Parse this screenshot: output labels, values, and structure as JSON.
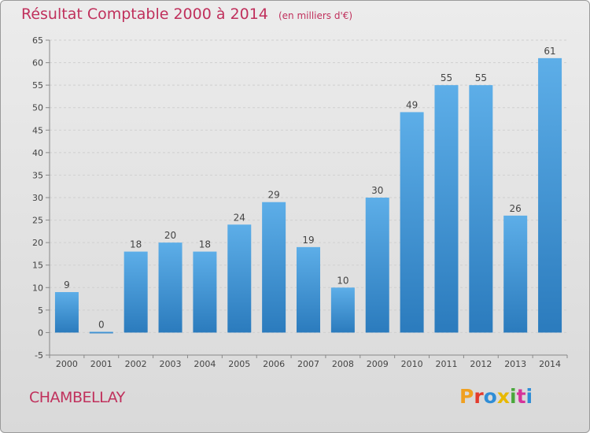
{
  "header": {
    "title": "Résultat Comptable 2000 à 2014",
    "unit": "(en milliers d'€)"
  },
  "footer": {
    "commune": "CHAMBELLAY",
    "brand": "Proxiti",
    "brand_colors": [
      "#f0a020",
      "#e33b2d",
      "#2f8dd6",
      "#e8b800",
      "#4aa83c",
      "#d6339a",
      "#2f8dd6"
    ]
  },
  "colors": {
    "title": "#c0305c",
    "bar_top": "#5daee8",
    "bar_bottom": "#2b7bbd",
    "grid": "#cfcfcf",
    "axis": "#888888"
  },
  "chart_data": {
    "type": "bar",
    "title": "Résultat Comptable 2000 à 2014",
    "subtitle": "(en milliers d'€)",
    "xlabel": "",
    "ylabel": "",
    "categories": [
      "2000",
      "2001",
      "2002",
      "2003",
      "2004",
      "2005",
      "2006",
      "2007",
      "2008",
      "2009",
      "2010",
      "2011",
      "2012",
      "2013",
      "2014"
    ],
    "values": [
      9,
      0,
      18,
      20,
      18,
      24,
      29,
      19,
      10,
      30,
      49,
      55,
      55,
      26,
      61
    ],
    "ylim": [
      -5,
      65
    ],
    "yticks": [
      -5,
      0,
      5,
      10,
      15,
      20,
      25,
      30,
      35,
      40,
      45,
      50,
      55,
      60,
      65
    ],
    "grid": true,
    "legend": "none"
  }
}
